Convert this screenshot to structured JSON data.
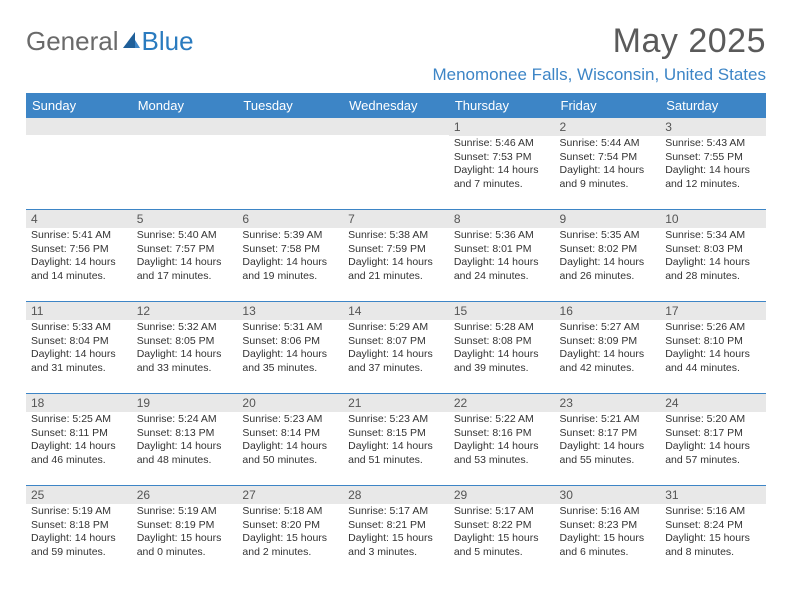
{
  "colors": {
    "header_bg": "#3d85c6",
    "header_text": "#ffffff",
    "daynum_bg": "#e8e8e8",
    "border": "#3d85c6",
    "title_color": "#5a5a5a",
    "location_color": "#3d85c6",
    "logo_gray": "#6a6a6a",
    "logo_blue": "#2a7bbf"
  },
  "logo": {
    "part1": "General",
    "part2": "Blue"
  },
  "title": "May 2025",
  "location": "Menomonee Falls, Wisconsin, United States",
  "weekdays": [
    "Sunday",
    "Monday",
    "Tuesday",
    "Wednesday",
    "Thursday",
    "Friday",
    "Saturday"
  ],
  "weeks": [
    [
      {
        "n": "",
        "sunrise": "",
        "sunset": "",
        "daylight": ""
      },
      {
        "n": "",
        "sunrise": "",
        "sunset": "",
        "daylight": ""
      },
      {
        "n": "",
        "sunrise": "",
        "sunset": "",
        "daylight": ""
      },
      {
        "n": "",
        "sunrise": "",
        "sunset": "",
        "daylight": ""
      },
      {
        "n": "1",
        "sunrise": "Sunrise: 5:46 AM",
        "sunset": "Sunset: 7:53 PM",
        "daylight": "Daylight: 14 hours and 7 minutes."
      },
      {
        "n": "2",
        "sunrise": "Sunrise: 5:44 AM",
        "sunset": "Sunset: 7:54 PM",
        "daylight": "Daylight: 14 hours and 9 minutes."
      },
      {
        "n": "3",
        "sunrise": "Sunrise: 5:43 AM",
        "sunset": "Sunset: 7:55 PM",
        "daylight": "Daylight: 14 hours and 12 minutes."
      }
    ],
    [
      {
        "n": "4",
        "sunrise": "Sunrise: 5:41 AM",
        "sunset": "Sunset: 7:56 PM",
        "daylight": "Daylight: 14 hours and 14 minutes."
      },
      {
        "n": "5",
        "sunrise": "Sunrise: 5:40 AM",
        "sunset": "Sunset: 7:57 PM",
        "daylight": "Daylight: 14 hours and 17 minutes."
      },
      {
        "n": "6",
        "sunrise": "Sunrise: 5:39 AM",
        "sunset": "Sunset: 7:58 PM",
        "daylight": "Daylight: 14 hours and 19 minutes."
      },
      {
        "n": "7",
        "sunrise": "Sunrise: 5:38 AM",
        "sunset": "Sunset: 7:59 PM",
        "daylight": "Daylight: 14 hours and 21 minutes."
      },
      {
        "n": "8",
        "sunrise": "Sunrise: 5:36 AM",
        "sunset": "Sunset: 8:01 PM",
        "daylight": "Daylight: 14 hours and 24 minutes."
      },
      {
        "n": "9",
        "sunrise": "Sunrise: 5:35 AM",
        "sunset": "Sunset: 8:02 PM",
        "daylight": "Daylight: 14 hours and 26 minutes."
      },
      {
        "n": "10",
        "sunrise": "Sunrise: 5:34 AM",
        "sunset": "Sunset: 8:03 PM",
        "daylight": "Daylight: 14 hours and 28 minutes."
      }
    ],
    [
      {
        "n": "11",
        "sunrise": "Sunrise: 5:33 AM",
        "sunset": "Sunset: 8:04 PM",
        "daylight": "Daylight: 14 hours and 31 minutes."
      },
      {
        "n": "12",
        "sunrise": "Sunrise: 5:32 AM",
        "sunset": "Sunset: 8:05 PM",
        "daylight": "Daylight: 14 hours and 33 minutes."
      },
      {
        "n": "13",
        "sunrise": "Sunrise: 5:31 AM",
        "sunset": "Sunset: 8:06 PM",
        "daylight": "Daylight: 14 hours and 35 minutes."
      },
      {
        "n": "14",
        "sunrise": "Sunrise: 5:29 AM",
        "sunset": "Sunset: 8:07 PM",
        "daylight": "Daylight: 14 hours and 37 minutes."
      },
      {
        "n": "15",
        "sunrise": "Sunrise: 5:28 AM",
        "sunset": "Sunset: 8:08 PM",
        "daylight": "Daylight: 14 hours and 39 minutes."
      },
      {
        "n": "16",
        "sunrise": "Sunrise: 5:27 AM",
        "sunset": "Sunset: 8:09 PM",
        "daylight": "Daylight: 14 hours and 42 minutes."
      },
      {
        "n": "17",
        "sunrise": "Sunrise: 5:26 AM",
        "sunset": "Sunset: 8:10 PM",
        "daylight": "Daylight: 14 hours and 44 minutes."
      }
    ],
    [
      {
        "n": "18",
        "sunrise": "Sunrise: 5:25 AM",
        "sunset": "Sunset: 8:11 PM",
        "daylight": "Daylight: 14 hours and 46 minutes."
      },
      {
        "n": "19",
        "sunrise": "Sunrise: 5:24 AM",
        "sunset": "Sunset: 8:13 PM",
        "daylight": "Daylight: 14 hours and 48 minutes."
      },
      {
        "n": "20",
        "sunrise": "Sunrise: 5:23 AM",
        "sunset": "Sunset: 8:14 PM",
        "daylight": "Daylight: 14 hours and 50 minutes."
      },
      {
        "n": "21",
        "sunrise": "Sunrise: 5:23 AM",
        "sunset": "Sunset: 8:15 PM",
        "daylight": "Daylight: 14 hours and 51 minutes."
      },
      {
        "n": "22",
        "sunrise": "Sunrise: 5:22 AM",
        "sunset": "Sunset: 8:16 PM",
        "daylight": "Daylight: 14 hours and 53 minutes."
      },
      {
        "n": "23",
        "sunrise": "Sunrise: 5:21 AM",
        "sunset": "Sunset: 8:17 PM",
        "daylight": "Daylight: 14 hours and 55 minutes."
      },
      {
        "n": "24",
        "sunrise": "Sunrise: 5:20 AM",
        "sunset": "Sunset: 8:17 PM",
        "daylight": "Daylight: 14 hours and 57 minutes."
      }
    ],
    [
      {
        "n": "25",
        "sunrise": "Sunrise: 5:19 AM",
        "sunset": "Sunset: 8:18 PM",
        "daylight": "Daylight: 14 hours and 59 minutes."
      },
      {
        "n": "26",
        "sunrise": "Sunrise: 5:19 AM",
        "sunset": "Sunset: 8:19 PM",
        "daylight": "Daylight: 15 hours and 0 minutes."
      },
      {
        "n": "27",
        "sunrise": "Sunrise: 5:18 AM",
        "sunset": "Sunset: 8:20 PM",
        "daylight": "Daylight: 15 hours and 2 minutes."
      },
      {
        "n": "28",
        "sunrise": "Sunrise: 5:17 AM",
        "sunset": "Sunset: 8:21 PM",
        "daylight": "Daylight: 15 hours and 3 minutes."
      },
      {
        "n": "29",
        "sunrise": "Sunrise: 5:17 AM",
        "sunset": "Sunset: 8:22 PM",
        "daylight": "Daylight: 15 hours and 5 minutes."
      },
      {
        "n": "30",
        "sunrise": "Sunrise: 5:16 AM",
        "sunset": "Sunset: 8:23 PM",
        "daylight": "Daylight: 15 hours and 6 minutes."
      },
      {
        "n": "31",
        "sunrise": "Sunrise: 5:16 AM",
        "sunset": "Sunset: 8:24 PM",
        "daylight": "Daylight: 15 hours and 8 minutes."
      }
    ]
  ]
}
